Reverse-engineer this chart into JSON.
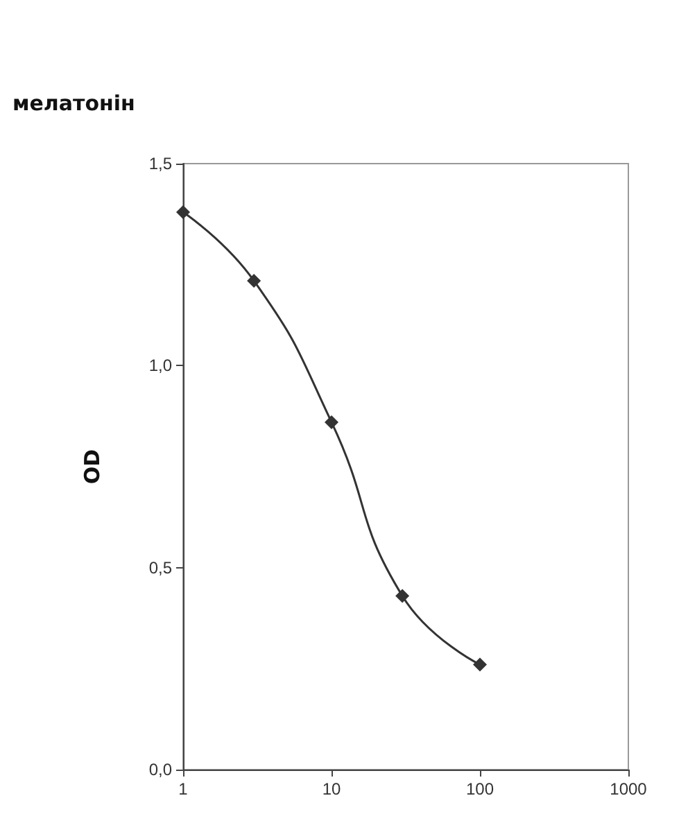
{
  "chart_data": {
    "type": "line",
    "title": "мелатонін",
    "ylabel": "OD",
    "x": [
      1,
      3,
      10,
      30,
      100
    ],
    "series": [
      {
        "color": "#333333",
        "values": [
          1.38,
          1.21,
          0.86,
          0.43,
          0.26
        ]
      }
    ],
    "log": "x",
    "xlim": [
      1,
      1000
    ],
    "xticks": [
      1,
      10,
      100,
      1000
    ],
    "ylim": [
      0,
      1.5
    ],
    "yticks": [
      {
        "value": 0,
        "label": "0,0"
      },
      {
        "value": 0.5,
        "label": "0,5"
      },
      {
        "value": 1,
        "label": "1,0"
      },
      {
        "value": 1.5,
        "label": "1,5"
      }
    ],
    "grid": false,
    "marker": "diamond",
    "line_style": "solid"
  }
}
